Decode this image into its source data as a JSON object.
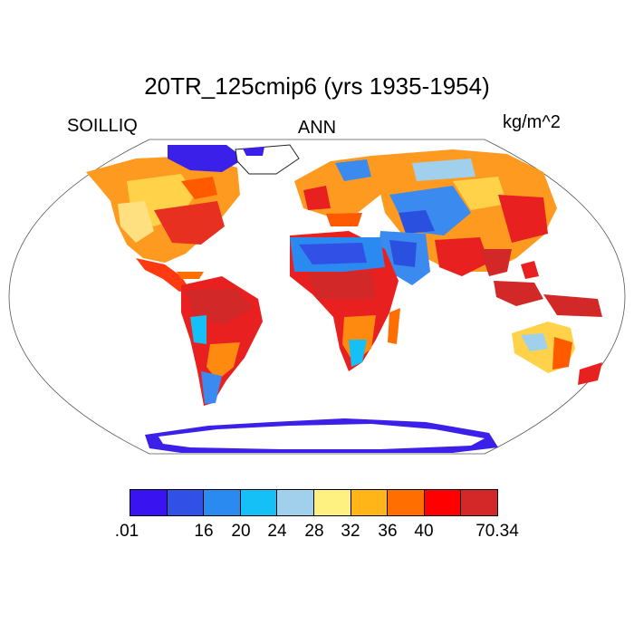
{
  "title": "20TR_125cmip6 (yrs 1935-1954)",
  "variable": "SOILLIQ",
  "season": "ANN",
  "units": "kg/m^2",
  "colorbar": {
    "colors": [
      "#3a14f0",
      "#3050e6",
      "#2a8af0",
      "#14c0f5",
      "#a0d0ec",
      "#fff082",
      "#ffb418",
      "#ff6e00",
      "#ff0000",
      "#d42828"
    ],
    "tick_labels": [
      ".01",
      "16",
      "20",
      "24",
      "28",
      "32",
      "36",
      "40",
      "70.34"
    ]
  },
  "chart_data": {
    "type": "heatmap",
    "title": "20TR_125cmip6 (yrs 1935-1954)",
    "variable": "SOILLIQ",
    "season": "ANN",
    "units": "kg/m^2",
    "projection": "Robinson",
    "levels": [
      ".01",
      "16",
      "20",
      "24",
      "28",
      "32",
      "36",
      "40",
      "70.34"
    ]
  }
}
